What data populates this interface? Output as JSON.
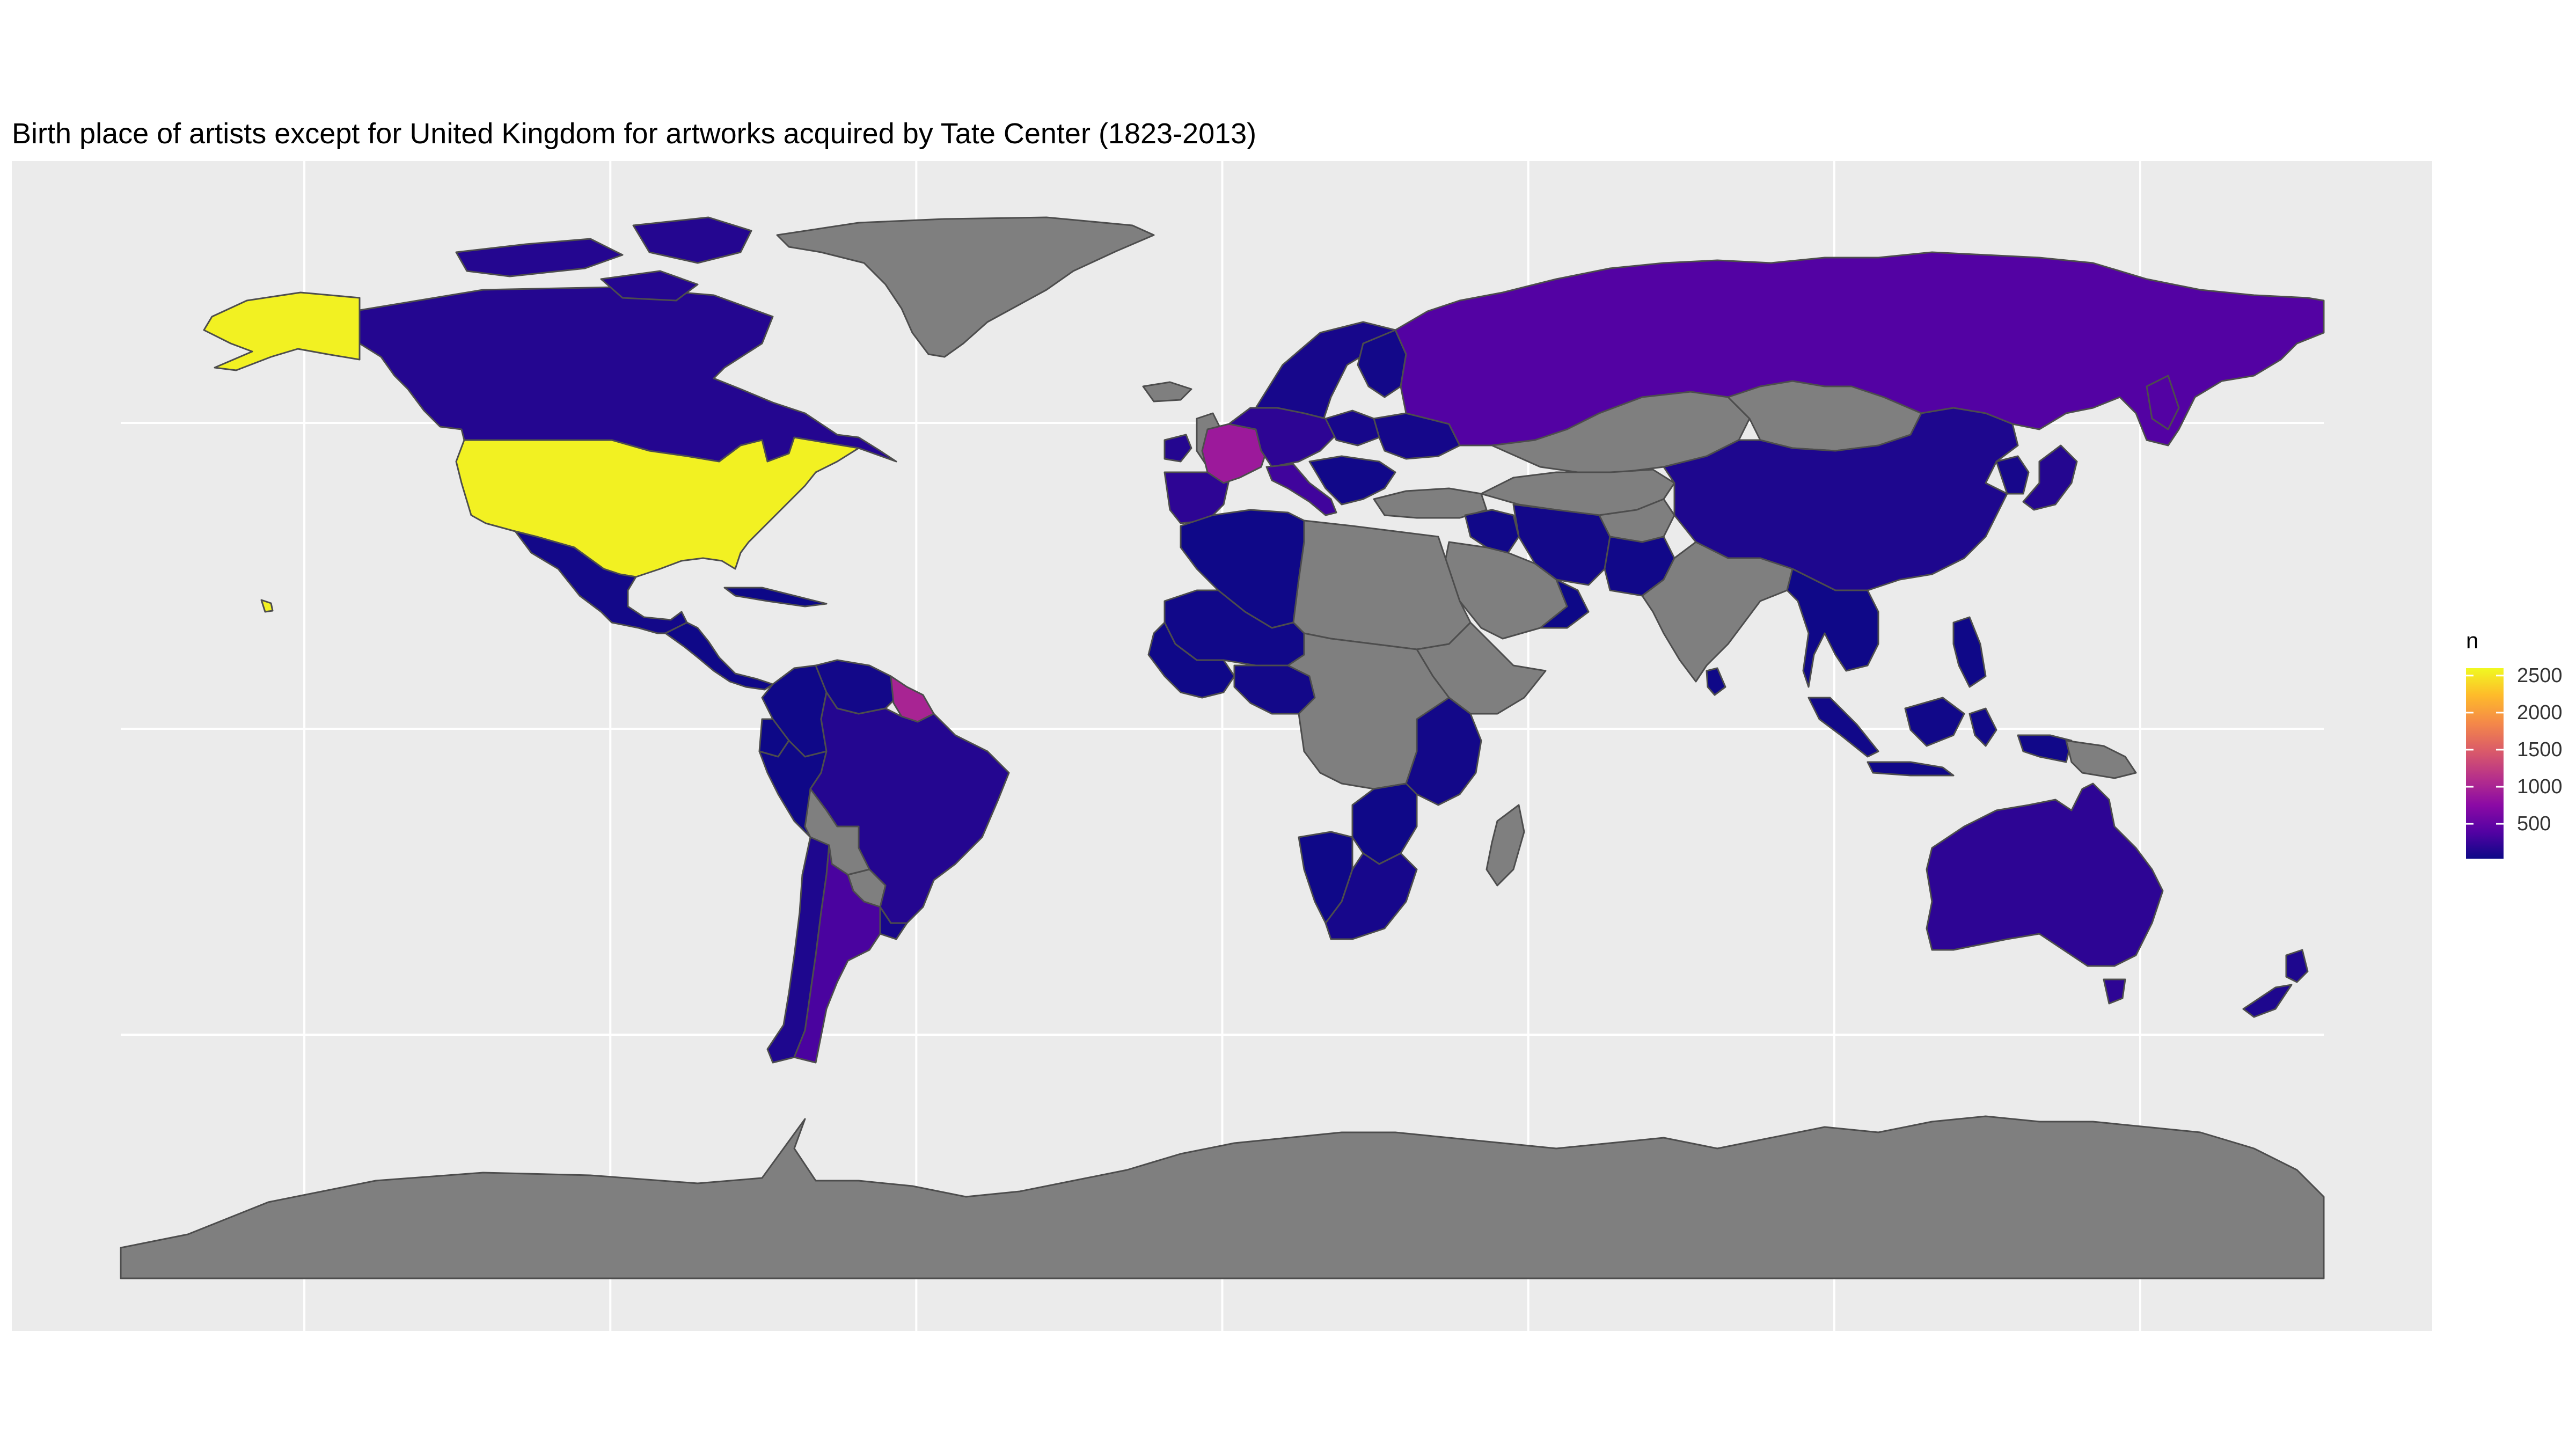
{
  "title": "Birth place of artists except for United Kingdom for artworks acquired by Tate Center (1823-2013)",
  "chart_data": {
    "type": "choropleth",
    "fill_variable": "n",
    "legend": {
      "title": "n",
      "placement": "right",
      "ticks": [
        500,
        1000,
        1500,
        2000,
        2500
      ],
      "tick_labels": [
        "500",
        "1000",
        "1500",
        "2000",
        "2500"
      ],
      "range": [
        30,
        2600
      ],
      "palette": [
        "#0d0887",
        "#5302a3",
        "#8b0aa5",
        "#b83289",
        "#db5c68",
        "#f48849",
        "#febc2a",
        "#f0f921"
      ]
    },
    "no_data_color": "#7f7f7f",
    "background_color": "#ebebeb",
    "grid_color": "#ffffff",
    "graticule": {
      "lon": [
        -150,
        -100,
        -50,
        0,
        50,
        100,
        150
      ],
      "lat": [
        -50,
        0,
        50
      ]
    },
    "regions": [
      {
        "id": "united-states",
        "n": 2550
      },
      {
        "id": "alaska",
        "n": 2550
      },
      {
        "id": "hawaii",
        "n": 2550
      },
      {
        "id": "canada",
        "n": 150
      },
      {
        "id": "greenland",
        "n": null
      },
      {
        "id": "mexico",
        "n": 60
      },
      {
        "id": "central-america",
        "n": 40
      },
      {
        "id": "cuba",
        "n": 30
      },
      {
        "id": "colombia",
        "n": 40
      },
      {
        "id": "venezuela",
        "n": 60
      },
      {
        "id": "guyanas",
        "n": 1000
      },
      {
        "id": "ecuador",
        "n": 30
      },
      {
        "id": "peru",
        "n": 40
      },
      {
        "id": "brazil",
        "n": 150
      },
      {
        "id": "bolivia",
        "n": null
      },
      {
        "id": "paraguay",
        "n": null
      },
      {
        "id": "chile",
        "n": 120
      },
      {
        "id": "argentina",
        "n": 350
      },
      {
        "id": "uruguay",
        "n": 80
      },
      {
        "id": "iceland",
        "n": null
      },
      {
        "id": "ireland",
        "n": 150
      },
      {
        "id": "scandinavia",
        "n": 80
      },
      {
        "id": "finland",
        "n": 60
      },
      {
        "id": "france",
        "n": 900
      },
      {
        "id": "iberia",
        "n": 200
      },
      {
        "id": "central-europe",
        "n": 200
      },
      {
        "id": "italy",
        "n": 300
      },
      {
        "id": "poland",
        "n": 80
      },
      {
        "id": "ukraine",
        "n": 70
      },
      {
        "id": "balkans",
        "n": 50
      },
      {
        "id": "turkey",
        "n": null
      },
      {
        "id": "russia",
        "n": 400
      },
      {
        "id": "kazakhstan",
        "n": null
      },
      {
        "id": "central-asia",
        "n": null
      },
      {
        "id": "mongolia",
        "n": null
      },
      {
        "id": "china",
        "n": 120
      },
      {
        "id": "korea",
        "n": 80
      },
      {
        "id": "japan",
        "n": 150
      },
      {
        "id": "india",
        "n": null
      },
      {
        "id": "sri-lanka",
        "n": 40
      },
      {
        "id": "pakistan",
        "n": 50
      },
      {
        "id": "afghanistan",
        "n": null
      },
      {
        "id": "iran",
        "n": 60
      },
      {
        "id": "iraq",
        "n": 50
      },
      {
        "id": "saudi-arabia",
        "n": null
      },
      {
        "id": "oman",
        "n": 30
      },
      {
        "id": "southeast-asia",
        "n": 40
      },
      {
        "id": "philippines",
        "n": 40
      },
      {
        "id": "indonesia",
        "n": 50
      },
      {
        "id": "papua",
        "n": null
      },
      {
        "id": "australia",
        "n": 200
      },
      {
        "id": "tasmania",
        "n": 200
      },
      {
        "id": "new-zealand",
        "n": 120
      },
      {
        "id": "north-africa-west",
        "n": 40
      },
      {
        "id": "sahara-east",
        "n": null
      },
      {
        "id": "sahel",
        "n": 50
      },
      {
        "id": "west-africa",
        "n": 40
      },
      {
        "id": "nigeria",
        "n": 60
      },
      {
        "id": "central-africa",
        "n": null
      },
      {
        "id": "horn-of-africa",
        "n": null
      },
      {
        "id": "east-africa",
        "n": 60
      },
      {
        "id": "southern-africa-west",
        "n": 40
      },
      {
        "id": "south-africa",
        "n": 80
      },
      {
        "id": "zimbabwe",
        "n": 40
      },
      {
        "id": "madagascar",
        "n": null
      },
      {
        "id": "antarctica",
        "n": null
      }
    ]
  }
}
